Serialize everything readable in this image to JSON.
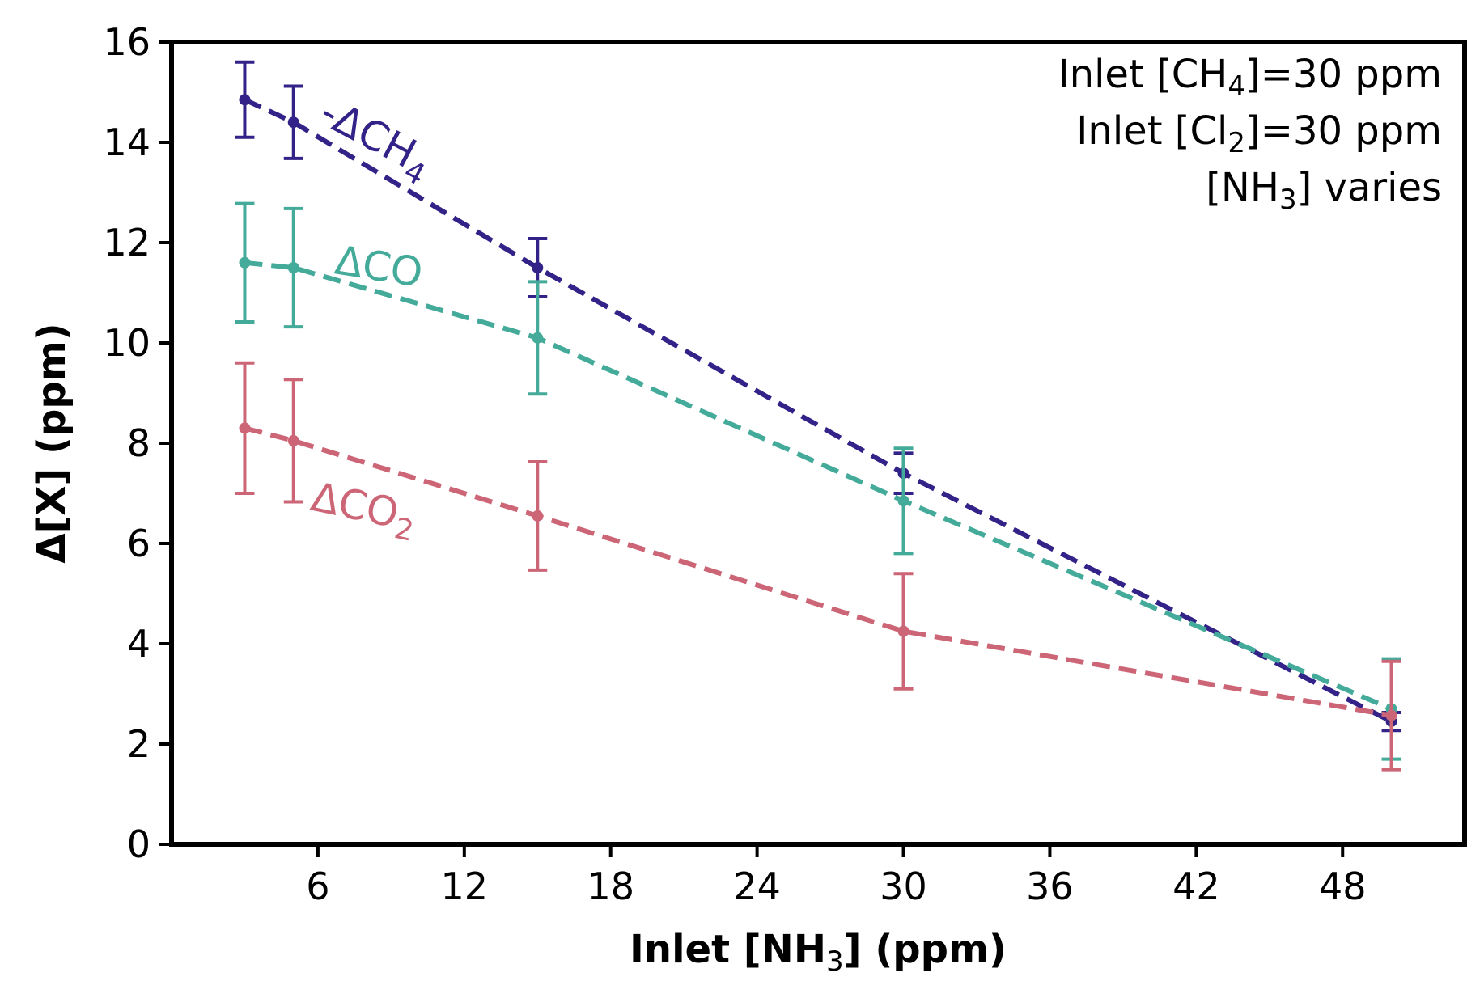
{
  "chart_data": {
    "type": "line",
    "xlabel": {
      "main": "Inlet [NH",
      "sub": "3",
      "tail": "] (ppm)"
    },
    "ylabel": "Δ[X] (ppm)",
    "xlim": [
      0,
      53
    ],
    "ylim": [
      0,
      16
    ],
    "xticks": [
      6,
      12,
      18,
      24,
      30,
      36,
      42,
      48
    ],
    "yticks": [
      0,
      2,
      4,
      6,
      8,
      10,
      12,
      14,
      16
    ],
    "grid": false,
    "annotations": [
      {
        "main": "Inlet [CH",
        "sub": "4",
        "tail": "]=30 ppm"
      },
      {
        "main": "Inlet [Cl",
        "sub": "2",
        "tail": "]=30 ppm"
      },
      {
        "main": "[NH",
        "sub": "3",
        "tail": "] varies"
      }
    ],
    "series": [
      {
        "name": "-ΔCH4",
        "label_main": "-ΔCH",
        "label_sub": "4",
        "color": "#332288",
        "x": [
          3,
          5,
          15,
          30,
          50
        ],
        "y": [
          14.85,
          14.4,
          11.5,
          7.4,
          2.45
        ],
        "err": [
          0.75,
          0.72,
          0.58,
          0.4,
          0.18
        ]
      },
      {
        "name": "ΔCO",
        "label_main": "ΔCO",
        "label_sub": "",
        "color": "#44AA99",
        "x": [
          3,
          5,
          15,
          30,
          50
        ],
        "y": [
          11.6,
          11.5,
          10.1,
          6.85,
          2.7
        ],
        "err": [
          1.18,
          1.18,
          1.12,
          1.05,
          1.0
        ]
      },
      {
        "name": "ΔCO2",
        "label_main": "ΔCO",
        "label_sub": "2",
        "color": "#CC6677",
        "x": [
          3,
          5,
          15,
          30,
          50
        ],
        "y": [
          8.3,
          8.05,
          6.55,
          4.25,
          2.57
        ],
        "err": [
          1.3,
          1.22,
          1.08,
          1.15,
          1.08
        ]
      }
    ]
  }
}
